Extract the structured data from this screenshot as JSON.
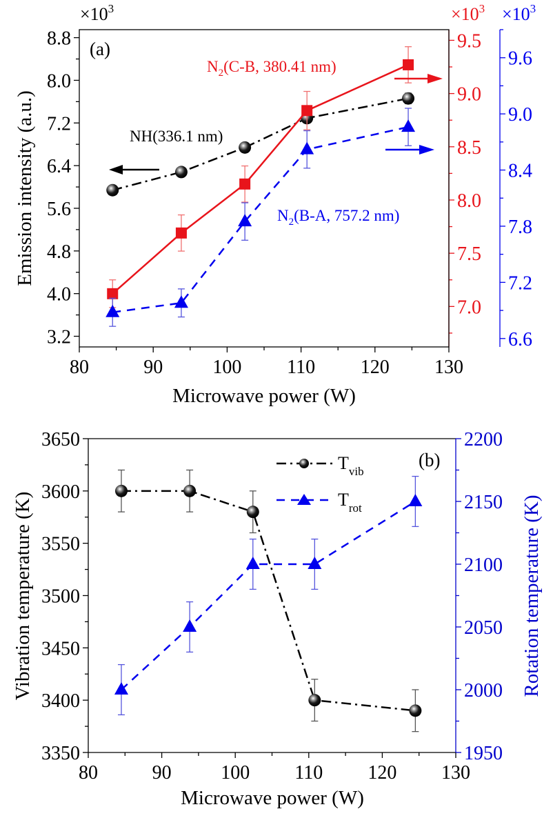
{
  "chart_data": [
    {
      "type": "line",
      "panel_label": "(a)",
      "xlabel": "Microwave power (W)",
      "ylabel": "Emission intensity (a.u.)",
      "xlim": [
        80,
        130
      ],
      "x_ticks": [
        "80",
        "90",
        "100",
        "110",
        "120",
        "130"
      ],
      "x_tick_values": [
        80,
        90,
        100,
        110,
        120,
        130
      ],
      "x": [
        84.5,
        93.8,
        102.4,
        110.8,
        124.5
      ],
      "axes": {
        "left": {
          "multiplier": "×10",
          "exp": "3",
          "ylim": [
            3.0,
            8.95
          ],
          "ticks": [
            3.2,
            4.0,
            4.8,
            5.6,
            6.4,
            7.2,
            8.0,
            8.8
          ],
          "tick_labels": [
            "3.2",
            "4.0",
            "4.8",
            "5.6",
            "6.4",
            "7.2",
            "8.0",
            "8.8"
          ],
          "color": "#000000"
        },
        "right1": {
          "multiplier": "×10",
          "exp": "3",
          "ylim": [
            6.62,
            9.6
          ],
          "ticks": [
            7.0,
            7.5,
            8.0,
            8.5,
            9.0,
            9.5
          ],
          "tick_labels": [
            "7.0",
            "7.5",
            "8.0",
            "8.5",
            "9.0",
            "9.5"
          ],
          "color": "#e8141b"
        },
        "right2": {
          "multiplier": "×10",
          "exp": "3",
          "ylim": [
            6.51,
            9.9
          ],
          "ticks": [
            6.6,
            7.2,
            7.8,
            8.4,
            9.0,
            9.6
          ],
          "tick_labels": [
            "6.6",
            "7.2",
            "7.8",
            "8.4",
            "9.0",
            "9.6"
          ],
          "color": "#0000ee"
        }
      },
      "series": [
        {
          "name": "NH(336.1 nm)",
          "axis": "left",
          "color": "#000000",
          "marker": "sphere",
          "line": "dash-dot",
          "values": [
            5.94,
            6.28,
            6.74,
            7.29,
            7.66
          ],
          "errors": [
            0.05,
            0.05,
            0.08,
            0.08,
            0.1
          ]
        },
        {
          "name_main": "N",
          "name_sub": "2",
          "name_rest": "(C-B, 380.41 nm)",
          "axis": "right1",
          "color": "#e8141b",
          "marker": "square",
          "line": "solid",
          "values": [
            7.12,
            7.69,
            8.15,
            8.84,
            9.27
          ],
          "errors": [
            0.13,
            0.17,
            0.17,
            0.18,
            0.17
          ]
        },
        {
          "name_main": "N",
          "name_sub": "2",
          "name_rest": "(B-A, 757.2 nm)",
          "axis": "right2",
          "color": "#0000ee",
          "marker": "triangle",
          "line": "dashed",
          "values": [
            6.88,
            6.98,
            7.85,
            8.62,
            8.86
          ],
          "errors": [
            0.15,
            0.15,
            0.2,
            0.2,
            0.2
          ]
        }
      ]
    },
    {
      "type": "line",
      "panel_label": "(b)",
      "xlabel": "Microwave power (W)",
      "ylabel_left": "Vibration temperature (K)",
      "ylabel_right": "Rotation temperature (K)",
      "xlim": [
        80,
        130
      ],
      "x_ticks": [
        "80",
        "90",
        "100",
        "110",
        "120",
        "130"
      ],
      "x_tick_values": [
        80,
        90,
        100,
        110,
        120,
        130
      ],
      "x": [
        84.5,
        93.8,
        102.4,
        110.8,
        124.5
      ],
      "axes": {
        "left": {
          "ylim": [
            3350,
            3650
          ],
          "ticks": [
            3350,
            3400,
            3450,
            3500,
            3550,
            3600,
            3650
          ],
          "tick_labels": [
            "3350",
            "3400",
            "3450",
            "3500",
            "3550",
            "3600",
            "3650"
          ],
          "color": "#000000"
        },
        "right": {
          "ylim": [
            1950,
            2200
          ],
          "ticks": [
            1950,
            2000,
            2050,
            2100,
            2150,
            2200
          ],
          "tick_labels": [
            "1950",
            "2000",
            "2050",
            "2100",
            "2150",
            "2200"
          ],
          "color": "#0000cc"
        }
      },
      "legend_position": "top-right",
      "series": [
        {
          "name_main": "T",
          "name_sub": "vib",
          "axis": "left",
          "color": "#000000",
          "marker": "sphere",
          "line": "dash-dot",
          "values": [
            3600,
            3600,
            3580,
            3400,
            3390
          ],
          "errors": [
            20,
            20,
            20,
            20,
            20
          ]
        },
        {
          "name_main": "T",
          "name_sub": "rot",
          "axis": "right",
          "color": "#0000ee",
          "marker": "triangle",
          "line": "dashed",
          "values": [
            2000,
            2050,
            2100,
            2100,
            2150
          ],
          "errors": [
            20,
            20,
            20,
            20,
            20
          ]
        }
      ]
    }
  ]
}
